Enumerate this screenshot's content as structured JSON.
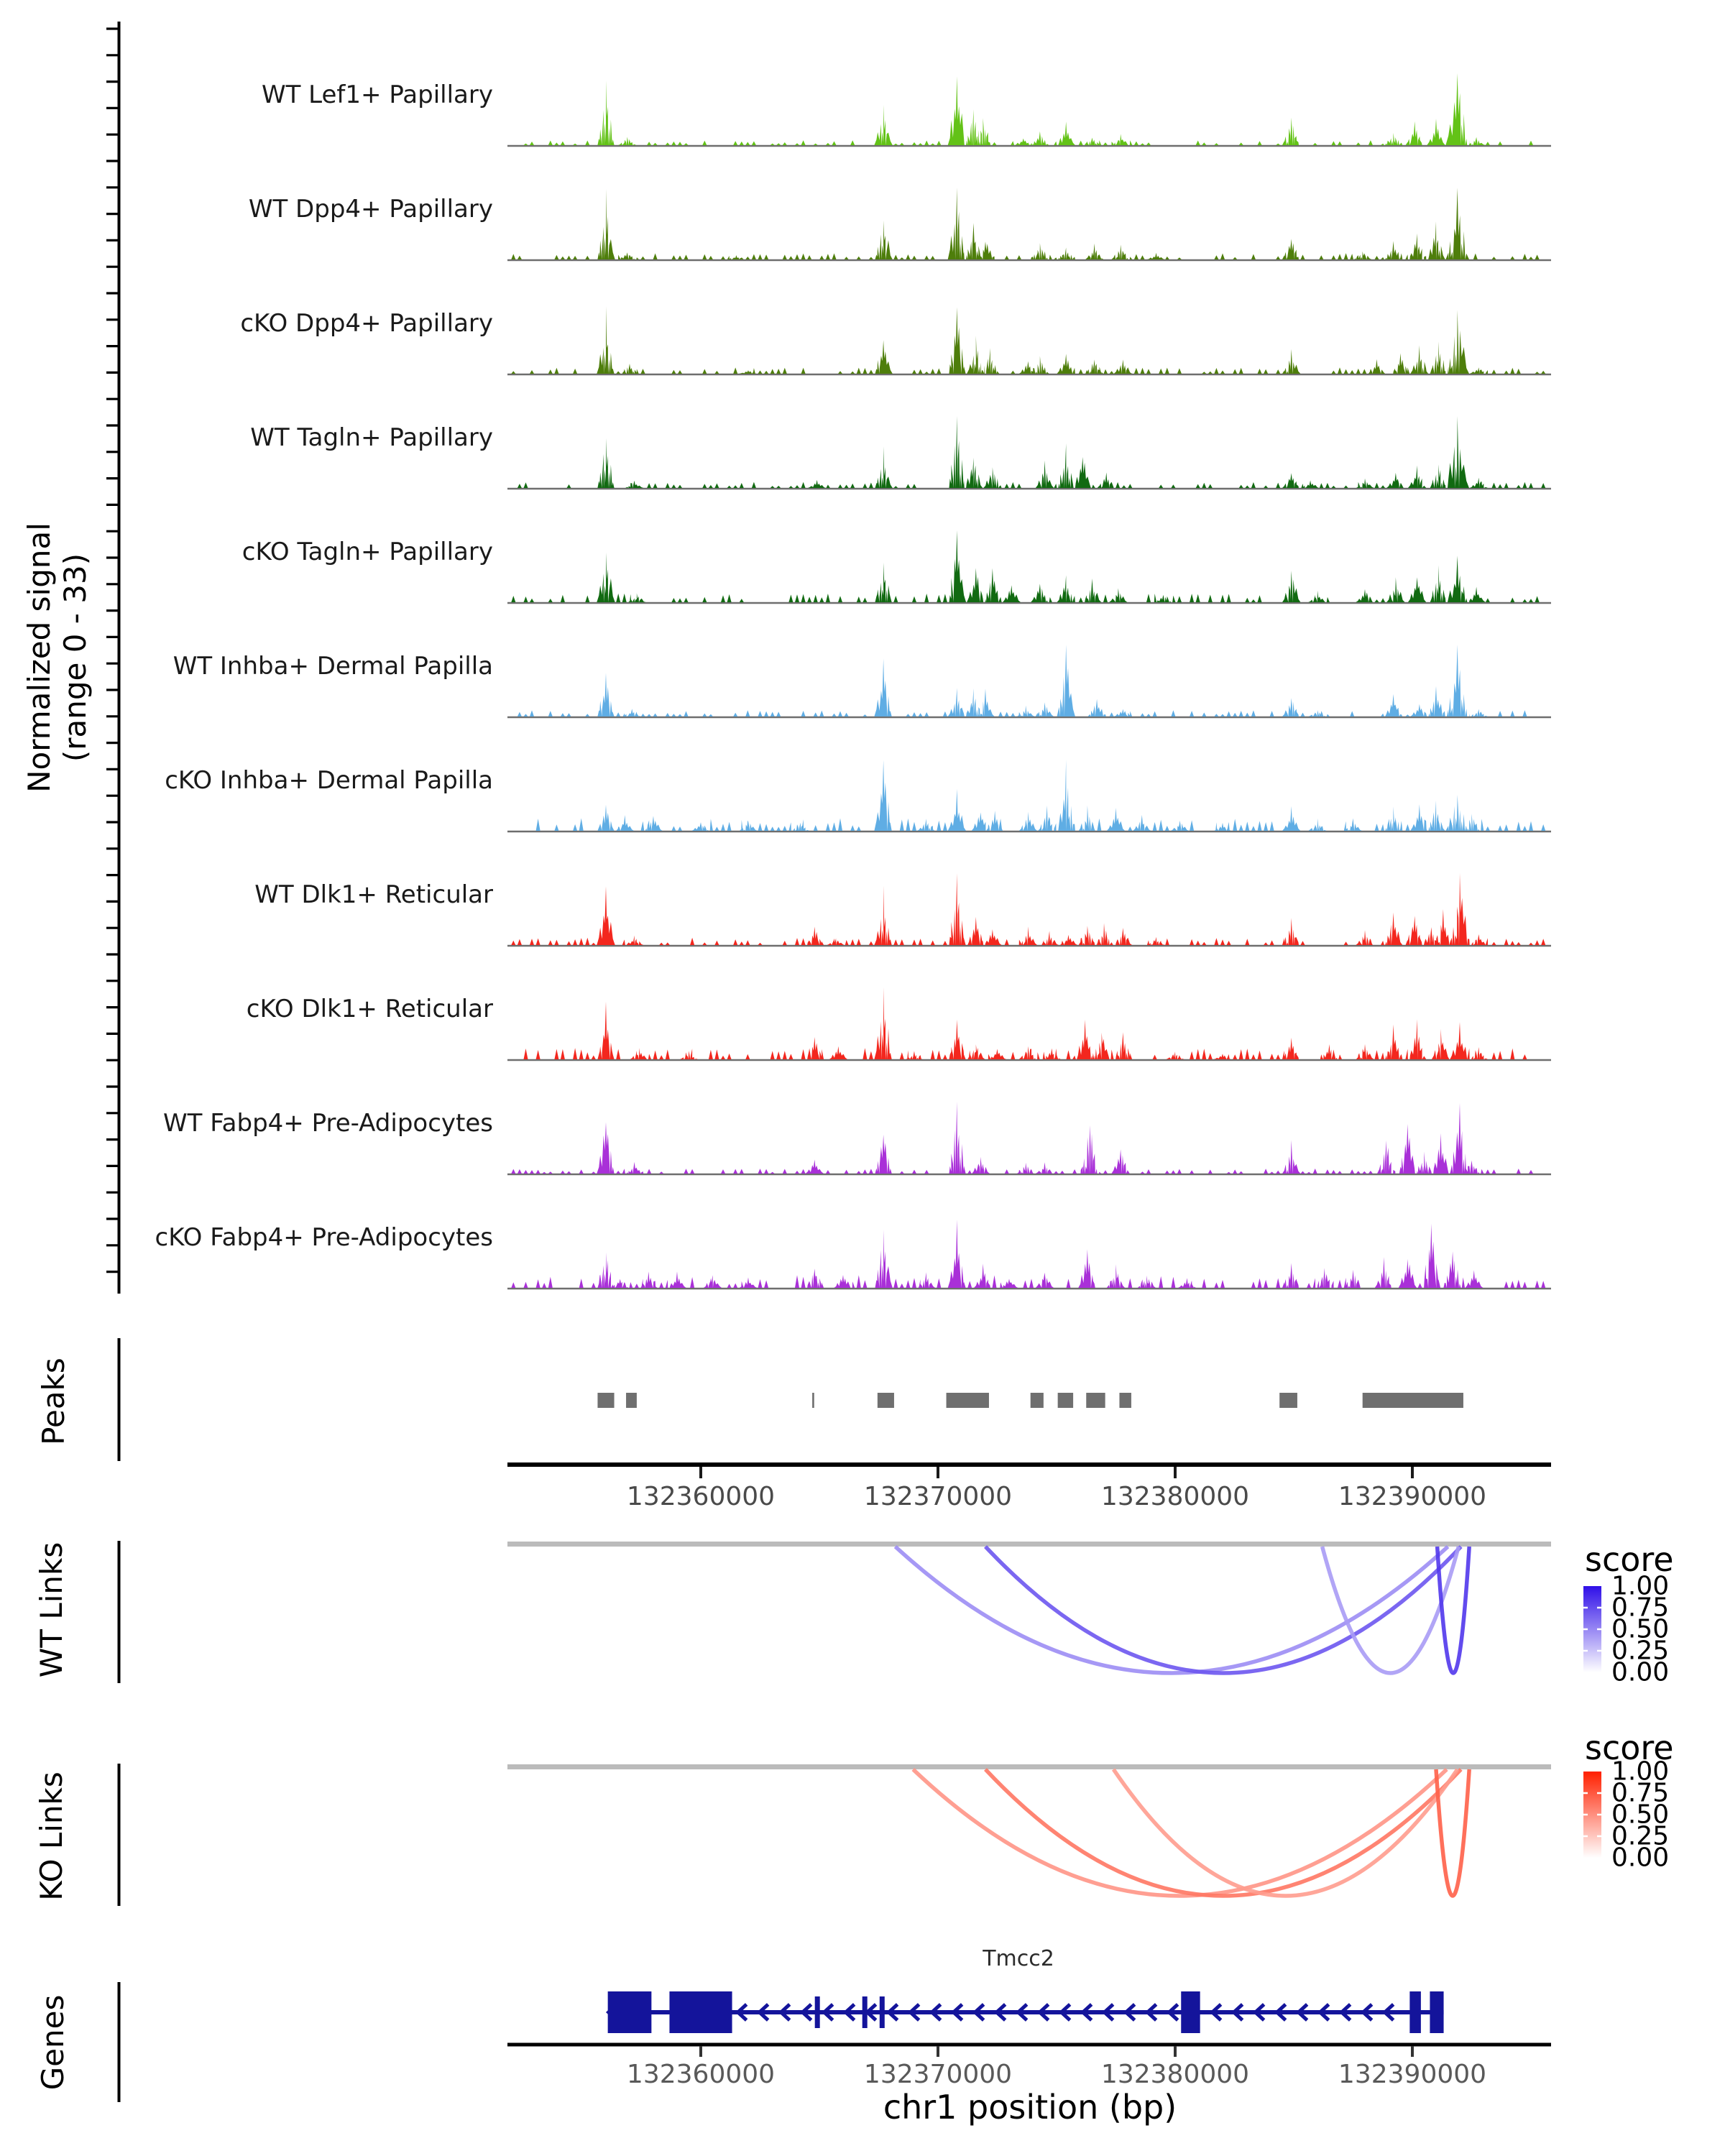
{
  "chart_data": {
    "type": "area",
    "title": "",
    "genome": {
      "xmin_bp": 132351800,
      "xmax_bp": 132395900,
      "axis_ticks": [
        {
          "bp": 132360000,
          "label": "132360000"
        },
        {
          "bp": 132370000,
          "label": "132370000"
        },
        {
          "bp": 132380000,
          "label": "132380000"
        },
        {
          "bp": 132390000,
          "label": "132390000"
        }
      ],
      "x_axis_title": "chr1 position (bp)"
    },
    "signal_axis": {
      "label_line1": "Normalized signal",
      "label_line2": "(range 0 - 33)"
    },
    "tracks": [
      {
        "label": "WT Lef1+ Papillary",
        "color": "#63C217",
        "noise": 0.04,
        "peaks": [
          [
            132356000,
            0.85
          ],
          [
            132356900,
            0.12
          ],
          [
            132367700,
            0.55
          ],
          [
            132370800,
            1.0
          ],
          [
            132371500,
            0.5
          ],
          [
            132371900,
            0.4
          ],
          [
            132373600,
            0.1
          ],
          [
            132374300,
            0.18
          ],
          [
            132375400,
            0.3
          ],
          [
            132376500,
            0.12
          ],
          [
            132377700,
            0.15
          ],
          [
            132384900,
            0.4
          ],
          [
            132389200,
            0.18
          ],
          [
            132390100,
            0.3
          ],
          [
            132391000,
            0.33
          ],
          [
            132391900,
            1.0,
            900
          ],
          [
            132392700,
            0.1
          ]
        ]
      },
      {
        "label": "WT Dpp4+ Papillary",
        "color": "#4E7E0B",
        "noise": 0.05,
        "peaks": [
          [
            132356000,
            0.88
          ],
          [
            132356900,
            0.1
          ],
          [
            132361500,
            0.05
          ],
          [
            132367700,
            0.6
          ],
          [
            132370800,
            1.0
          ],
          [
            132371500,
            0.48
          ],
          [
            132372000,
            0.3
          ],
          [
            132374300,
            0.27
          ],
          [
            132375400,
            0.15
          ],
          [
            132376600,
            0.2
          ],
          [
            132377700,
            0.22
          ],
          [
            132379200,
            0.08
          ],
          [
            132384900,
            0.33
          ],
          [
            132387900,
            0.12
          ],
          [
            132389200,
            0.24
          ],
          [
            132390200,
            0.35
          ],
          [
            132391000,
            0.5
          ],
          [
            132391900,
            0.95,
            900
          ]
        ]
      },
      {
        "label": "cKO Dpp4+ Papillary",
        "color": "#4E7E0B",
        "noise": 0.05,
        "peaks": [
          [
            132356000,
            0.8
          ],
          [
            132357000,
            0.14
          ],
          [
            132362000,
            0.05
          ],
          [
            132367700,
            0.55
          ],
          [
            132370800,
            0.95
          ],
          [
            132371600,
            0.45
          ],
          [
            132372200,
            0.33
          ],
          [
            132373800,
            0.18
          ],
          [
            132374300,
            0.22
          ],
          [
            132375400,
            0.28
          ],
          [
            132376600,
            0.24
          ],
          [
            132377800,
            0.2
          ],
          [
            132384900,
            0.3
          ],
          [
            132388500,
            0.18
          ],
          [
            132389500,
            0.28
          ],
          [
            132390300,
            0.38
          ],
          [
            132391100,
            0.45
          ],
          [
            132391900,
            0.85,
            900
          ],
          [
            132392800,
            0.1
          ]
        ]
      },
      {
        "label": "WT Tagln+ Papillary",
        "color": "#116A11",
        "noise": 0.05,
        "peaks": [
          [
            132356000,
            0.8
          ],
          [
            132357200,
            0.1
          ],
          [
            132364900,
            0.1
          ],
          [
            132367700,
            0.5
          ],
          [
            132370800,
            0.95
          ],
          [
            132371500,
            0.45
          ],
          [
            132372300,
            0.3
          ],
          [
            132374500,
            0.35
          ],
          [
            132375400,
            0.55
          ],
          [
            132376100,
            0.5
          ],
          [
            132377100,
            0.2
          ],
          [
            132384900,
            0.25
          ],
          [
            132385700,
            0.1
          ],
          [
            132388000,
            0.14
          ],
          [
            132389300,
            0.22
          ],
          [
            132390200,
            0.3
          ],
          [
            132391100,
            0.35
          ],
          [
            132391900,
            1.0,
            900
          ],
          [
            132392800,
            0.14
          ]
        ]
      },
      {
        "label": "cKO Tagln+ Papillary",
        "color": "#116A11",
        "noise": 0.07,
        "peaks": [
          [
            132356000,
            0.75
          ],
          [
            132357300,
            0.12
          ],
          [
            132367700,
            0.6
          ],
          [
            132370800,
            1.0
          ],
          [
            132371600,
            0.5
          ],
          [
            132372300,
            0.45
          ],
          [
            132373100,
            0.28
          ],
          [
            132374300,
            0.3
          ],
          [
            132375400,
            0.33
          ],
          [
            132376500,
            0.3
          ],
          [
            132377600,
            0.2
          ],
          [
            132379500,
            0.1
          ],
          [
            132384900,
            0.45
          ],
          [
            132386000,
            0.14
          ],
          [
            132388000,
            0.2
          ],
          [
            132389300,
            0.33
          ],
          [
            132390200,
            0.4
          ],
          [
            132391100,
            0.5
          ],
          [
            132391900,
            0.55,
            900
          ],
          [
            132392700,
            0.2
          ]
        ]
      },
      {
        "label": "WT Inhba+ Dermal Papilla",
        "color": "#5FADE4",
        "noise": 0.05,
        "peaks": [
          [
            132356000,
            0.62
          ],
          [
            132357100,
            0.1
          ],
          [
            132367700,
            0.75
          ],
          [
            132370800,
            0.38
          ],
          [
            132371500,
            0.35
          ],
          [
            132372000,
            0.33
          ],
          [
            132373700,
            0.14
          ],
          [
            132374500,
            0.2
          ],
          [
            132375400,
            1.0
          ],
          [
            132376700,
            0.25
          ],
          [
            132377800,
            0.12
          ],
          [
            132384900,
            0.3
          ],
          [
            132386000,
            0.1
          ],
          [
            132389200,
            0.32
          ],
          [
            132390300,
            0.2
          ],
          [
            132391000,
            0.4
          ],
          [
            132391900,
            1.0,
            900
          ],
          [
            132392800,
            0.1
          ]
        ]
      },
      {
        "label": "cKO Inhba+ Dermal Papilla",
        "color": "#5FADE4",
        "noise": 0.1,
        "peaks": [
          [
            132356000,
            0.35
          ],
          [
            132356800,
            0.2
          ],
          [
            132358000,
            0.24
          ],
          [
            132360000,
            0.12
          ],
          [
            132362000,
            0.14
          ],
          [
            132364200,
            0.12
          ],
          [
            132367700,
            1.0
          ],
          [
            132369500,
            0.15
          ],
          [
            132370800,
            0.5
          ],
          [
            132371800,
            0.3
          ],
          [
            132372400,
            0.25
          ],
          [
            132373800,
            0.25
          ],
          [
            132374600,
            0.3
          ],
          [
            132375400,
            0.85
          ],
          [
            132376300,
            0.3
          ],
          [
            132377500,
            0.3
          ],
          [
            132378600,
            0.2
          ],
          [
            132380200,
            0.14
          ],
          [
            132382000,
            0.1
          ],
          [
            132384900,
            0.3
          ],
          [
            132386000,
            0.15
          ],
          [
            132387500,
            0.15
          ],
          [
            132389200,
            0.3
          ],
          [
            132390300,
            0.35
          ],
          [
            132391000,
            0.4
          ],
          [
            132391900,
            0.55,
            900
          ],
          [
            132392500,
            0.25
          ]
        ]
      },
      {
        "label": "WT Dlk1+ Reticular",
        "color": "#F3271E",
        "noise": 0.06,
        "peaks": [
          [
            132356000,
            0.75
          ],
          [
            132357200,
            0.12
          ],
          [
            132364800,
            0.25
          ],
          [
            132365700,
            0.1
          ],
          [
            132367700,
            0.75
          ],
          [
            132370800,
            1.0
          ],
          [
            132371600,
            0.45
          ],
          [
            132372300,
            0.25
          ],
          [
            132373800,
            0.22
          ],
          [
            132374700,
            0.18
          ],
          [
            132375500,
            0.14
          ],
          [
            132376300,
            0.3
          ],
          [
            132377000,
            0.28
          ],
          [
            132377800,
            0.24
          ],
          [
            132379200,
            0.1
          ],
          [
            132384900,
            0.35
          ],
          [
            132388000,
            0.2
          ],
          [
            132389200,
            0.45
          ],
          [
            132390100,
            0.45
          ],
          [
            132390800,
            0.25
          ],
          [
            132391300,
            0.45
          ],
          [
            132392000,
            1.0,
            800
          ],
          [
            132392800,
            0.14
          ]
        ]
      },
      {
        "label": "cKO Dlk1+ Reticular",
        "color": "#F3271E",
        "noise": 0.09,
        "peaks": [
          [
            132356000,
            0.7
          ],
          [
            132357400,
            0.14
          ],
          [
            132359500,
            0.1
          ],
          [
            132364800,
            0.35
          ],
          [
            132365800,
            0.2
          ],
          [
            132367700,
            1.0
          ],
          [
            132369000,
            0.1
          ],
          [
            132370800,
            0.55
          ],
          [
            132371600,
            0.25
          ],
          [
            132372500,
            0.15
          ],
          [
            132373800,
            0.2
          ],
          [
            132374800,
            0.14
          ],
          [
            132376200,
            0.55
          ],
          [
            132376900,
            0.45
          ],
          [
            132377800,
            0.35
          ],
          [
            132380000,
            0.1
          ],
          [
            132382000,
            0.08
          ],
          [
            132384900,
            0.3
          ],
          [
            132386500,
            0.2
          ],
          [
            132388000,
            0.25
          ],
          [
            132389200,
            0.45
          ],
          [
            132390200,
            0.5
          ],
          [
            132391200,
            0.42
          ],
          [
            132392000,
            0.45,
            800
          ],
          [
            132392800,
            0.15
          ]
        ]
      },
      {
        "label": "WT Fabp4+ Pre-Adipocytes",
        "color": "#A930D8",
        "noise": 0.04,
        "peaks": [
          [
            132356000,
            0.85
          ],
          [
            132357200,
            0.14
          ],
          [
            132364800,
            0.2
          ],
          [
            132367700,
            0.65
          ],
          [
            132370800,
            1.0
          ],
          [
            132371800,
            0.25
          ],
          [
            132373700,
            0.15
          ],
          [
            132374500,
            0.14
          ],
          [
            132376400,
            0.8
          ],
          [
            132377700,
            0.4
          ],
          [
            132384900,
            0.4
          ],
          [
            132388900,
            0.5
          ],
          [
            132389800,
            0.75
          ],
          [
            132390500,
            0.3
          ],
          [
            132391200,
            0.55
          ],
          [
            132392000,
            0.9,
            800
          ],
          [
            132392500,
            0.2
          ]
        ]
      },
      {
        "label": "cKO Fabp4+ Pre-Adipocytes",
        "color": "#A930D8",
        "noise": 0.1,
        "peaks": [
          [
            132356000,
            0.55
          ],
          [
            132356600,
            0.15
          ],
          [
            132357800,
            0.2
          ],
          [
            132359000,
            0.2
          ],
          [
            132360500,
            0.2
          ],
          [
            132362000,
            0.14
          ],
          [
            132364800,
            0.3
          ],
          [
            132366000,
            0.2
          ],
          [
            132367700,
            0.95
          ],
          [
            132369500,
            0.2
          ],
          [
            132370800,
            0.9
          ],
          [
            132371900,
            0.3
          ],
          [
            132373000,
            0.15
          ],
          [
            132374500,
            0.25
          ],
          [
            132376300,
            0.55
          ],
          [
            132377500,
            0.3
          ],
          [
            132378800,
            0.2
          ],
          [
            132380500,
            0.14
          ],
          [
            132384900,
            0.35
          ],
          [
            132386300,
            0.3
          ],
          [
            132387500,
            0.25
          ],
          [
            132388800,
            0.4
          ],
          [
            132389800,
            0.45
          ],
          [
            132390800,
            1.0
          ],
          [
            132391700,
            0.6
          ],
          [
            132392600,
            0.25
          ]
        ]
      }
    ],
    "peaks_track": {
      "label": "Peaks",
      "color": "#6F6F6F",
      "regions": [
        [
          132355650,
          132356350
        ],
        [
          132356850,
          132357300
        ],
        [
          132364700,
          132364780
        ],
        [
          132367450,
          132368150
        ],
        [
          132370350,
          132372150
        ],
        [
          132373900,
          132374450
        ],
        [
          132375050,
          132375700
        ],
        [
          132376250,
          132377050
        ],
        [
          132377650,
          132378150
        ],
        [
          132384400,
          132385150
        ],
        [
          132387900,
          132392150
        ]
      ]
    },
    "wt_links": {
      "label": "WT Links",
      "legend_title": "score",
      "legend_ticks": [
        "1.00",
        "0.75",
        "0.50",
        "0.25",
        "0.00"
      ],
      "max_color": "#2F0FE8",
      "links": [
        {
          "from": 132368200,
          "to": 132391500,
          "score": 0.3
        },
        {
          "from": 132372000,
          "to": 132392050,
          "score": 0.6
        },
        {
          "from": 132386200,
          "to": 132391950,
          "score": 0.22
        },
        {
          "from": 132391050,
          "to": 132392400,
          "score": 0.78
        }
      ]
    },
    "ko_links": {
      "label": "KO Links",
      "legend_title": "score",
      "legend_ticks": [
        "1.00",
        "0.75",
        "0.50",
        "0.25",
        "0.00"
      ],
      "max_color": "#FF2000",
      "links": [
        {
          "from": 132368950,
          "to": 132391450,
          "score": 0.3
        },
        {
          "from": 132372000,
          "to": 132392050,
          "score": 0.48
        },
        {
          "from": 132377400,
          "to": 132391900,
          "score": 0.26
        },
        {
          "from": 132391000,
          "to": 132392400,
          "score": 0.62
        }
      ]
    },
    "genes_track": {
      "label": "Genes",
      "gene_name": "Tmcc2",
      "color": "#14149B",
      "strand": "minus",
      "gene_start_bp": 132356080,
      "gene_end_bp": 132391320,
      "big_exons": [
        [
          132356080,
          132357920
        ],
        [
          132358680,
          132361320
        ],
        [
          132380250,
          132381050
        ],
        [
          132389890,
          132390360
        ],
        [
          132390740,
          132391320
        ]
      ],
      "thin_exons": [
        132364900,
        132366900,
        132367630
      ]
    }
  }
}
